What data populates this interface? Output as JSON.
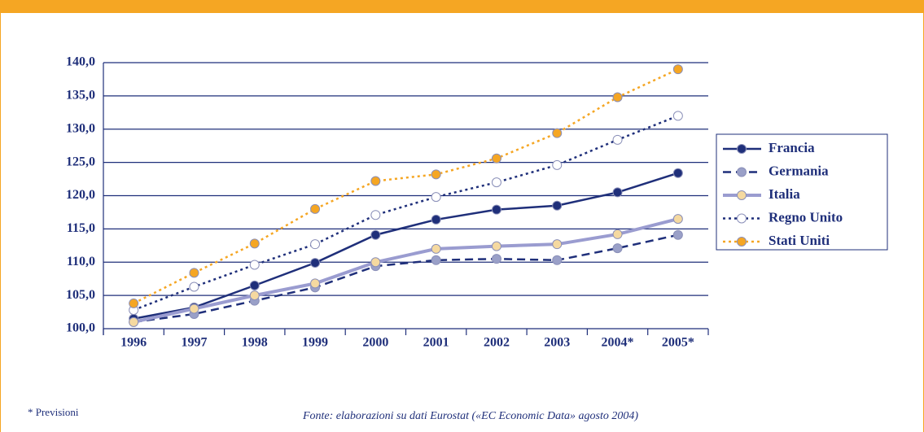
{
  "chart_data": {
    "type": "line",
    "categories": [
      "1996",
      "1997",
      "1998",
      "1999",
      "2000",
      "2001",
      "2002",
      "2003",
      "2004*",
      "2005*"
    ],
    "series": [
      {
        "name": "Francia",
        "color": "#1f2f7a",
        "marker_color": "#1f2f7a",
        "dash": "solid",
        "values": [
          101.5,
          103.2,
          106.5,
          109.9,
          114.1,
          116.4,
          117.9,
          118.5,
          120.5,
          123.4
        ]
      },
      {
        "name": "Germania",
        "color": "#1f2f7a",
        "marker_color": "#9aa0c8",
        "dash": "dashed",
        "values": [
          101.0,
          102.2,
          104.2,
          106.2,
          109.4,
          110.3,
          110.5,
          110.3,
          112.1,
          114.1
        ]
      },
      {
        "name": "Italia",
        "color": "#9a9cd0",
        "marker_color": "#f5d9a0",
        "dash": "solid",
        "values": [
          101.0,
          103.0,
          105.0,
          106.8,
          110.0,
          112.0,
          112.4,
          112.7,
          114.2,
          116.5
        ]
      },
      {
        "name": "Regno Unito",
        "color": "#1f2f7a",
        "marker_color": "#ffffff",
        "dash": "dotted",
        "values": [
          102.8,
          106.3,
          109.6,
          112.7,
          117.1,
          119.8,
          122.0,
          124.6,
          128.4,
          132.0
        ]
      },
      {
        "name": "Stati Uniti",
        "color": "#f5a623",
        "marker_color": "#f5a623",
        "dash": "dotted",
        "values": [
          103.8,
          108.4,
          112.8,
          118.0,
          122.2,
          123.2,
          125.6,
          129.4,
          134.8,
          139.0
        ]
      }
    ],
    "ylim": [
      100,
      140
    ],
    "yticks": [
      {
        "value": 100,
        "label": "100,0"
      },
      {
        "value": 105,
        "label": "105,0"
      },
      {
        "value": 110,
        "label": "110,0"
      },
      {
        "value": 115,
        "label": "115,0"
      },
      {
        "value": 120,
        "label": "120,0"
      },
      {
        "value": 125,
        "label": "125,0"
      },
      {
        "value": 130,
        "label": "130,0"
      },
      {
        "value": 135,
        "label": "135,0"
      },
      {
        "value": 140,
        "label": "140,0"
      }
    ],
    "grid": true,
    "legend": "right",
    "footnote": "* Previsioni",
    "source": "Fonte: elaborazioni su dati Eurostat («EC Economic Data» agosto 2004)"
  }
}
